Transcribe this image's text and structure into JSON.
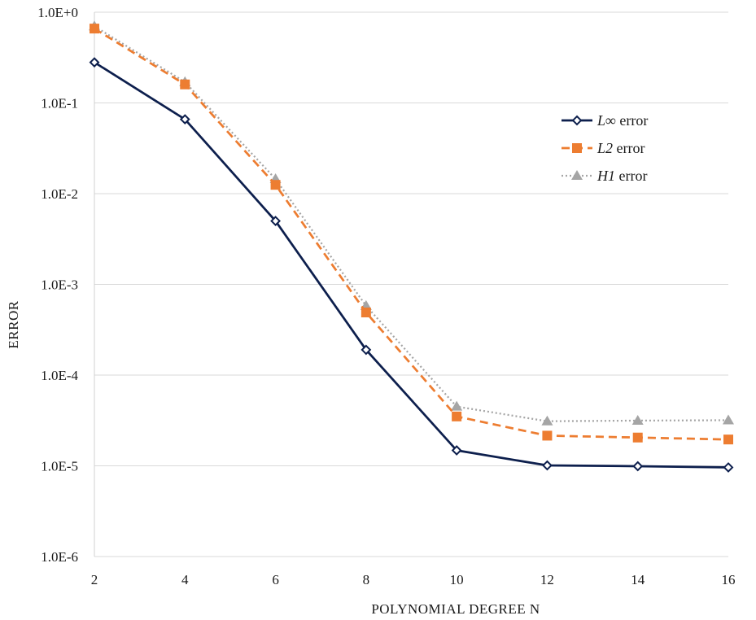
{
  "chart_data": {
    "type": "line",
    "title": "",
    "xlabel": "POLYNOMIAL DEGREE N",
    "ylabel": "ERROR",
    "x": [
      2,
      4,
      6,
      8,
      10,
      12,
      14,
      16
    ],
    "x_ticks": [
      "2",
      "4",
      "6",
      "8",
      "10",
      "12",
      "14",
      "16"
    ],
    "y_scale": "log",
    "ylim": [
      1e-06,
      1
    ],
    "y_ticks": [
      {
        "value": 1,
        "label": "1.0E+0"
      },
      {
        "value": 0.1,
        "label": "1.0E-1"
      },
      {
        "value": 0.01,
        "label": "1.0E-2"
      },
      {
        "value": 0.001,
        "label": "1.0E-3"
      },
      {
        "value": 0.0001,
        "label": "1.0E-4"
      },
      {
        "value": 1e-05,
        "label": "1.0E-5"
      },
      {
        "value": 1e-06,
        "label": "1.0E-6"
      }
    ],
    "grid": "horizontal",
    "legend_position": "right",
    "series": [
      {
        "name_italic": "L∞",
        "name_rest": " error",
        "color": "#0d1f4d",
        "style": "solid",
        "marker": "diamond",
        "values": [
          0.28,
          0.066,
          0.005,
          0.00019,
          1.48e-05,
          1.01e-05,
          9.9e-06,
          9.6e-06
        ]
      },
      {
        "name_italic": "L2",
        "name_rest": " error",
        "color": "#ed7d31",
        "style": "dashed",
        "marker": "square",
        "values": [
          0.66,
          0.16,
          0.0125,
          0.00049,
          3.5e-05,
          2.15e-05,
          2.05e-05,
          1.95e-05
        ]
      },
      {
        "name_italic": "H1",
        "name_rest": " error",
        "color": "#a5a5a5",
        "style": "dotted",
        "marker": "triangle",
        "values": [
          0.7,
          0.17,
          0.0145,
          0.00058,
          4.5e-05,
          3.1e-05,
          3.15e-05,
          3.18e-05
        ]
      }
    ]
  }
}
